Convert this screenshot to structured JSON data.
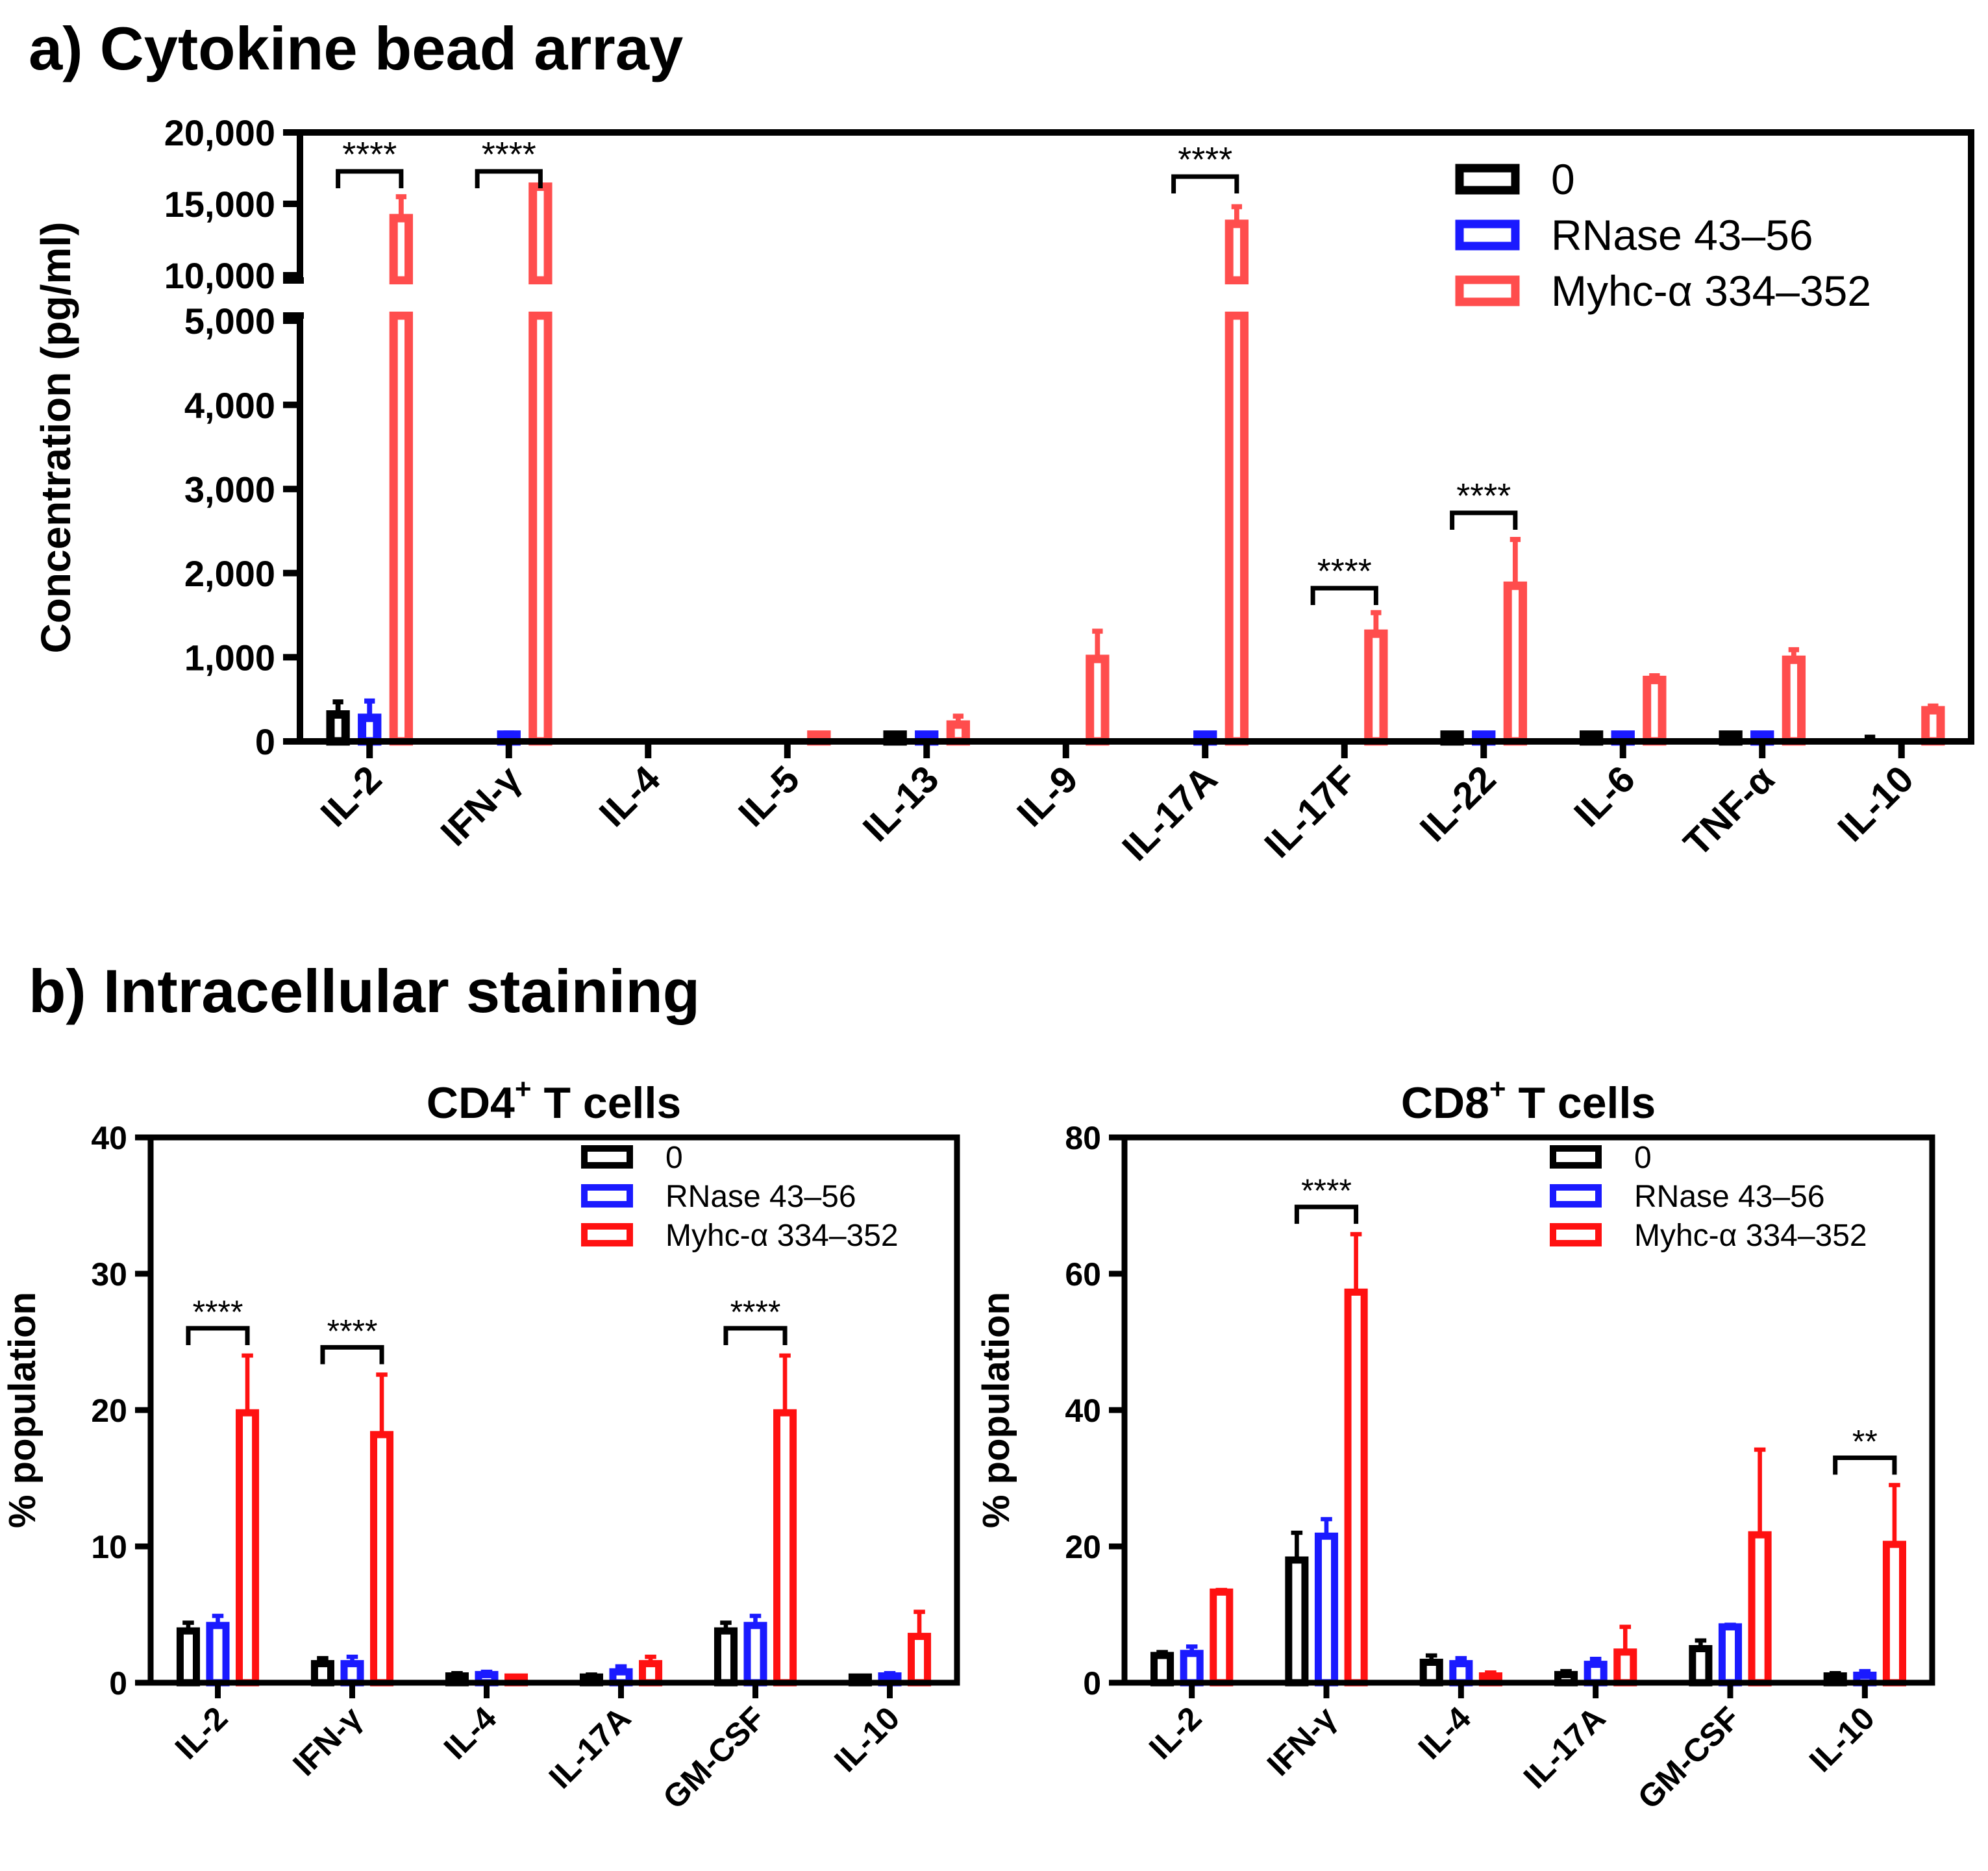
{
  "panel_a_heading": "a) Cytokine bead array",
  "panel_b_heading": "b) Intracellular staining",
  "colors": {
    "zero": "#000000",
    "rnase": "#1a1aff",
    "myhc_a": "#ff4d4d",
    "myhc_b": "#ff1111",
    "axis": "#000000"
  },
  "chart_data": [
    {
      "id": "a",
      "type": "bar",
      "title": "",
      "ylabel": "Concentration (pg/ml)",
      "xlabel": "",
      "y_axis_break": {
        "lower": [
          0,
          5000
        ],
        "upper": [
          10000,
          20000
        ]
      },
      "lower_ticks": [
        "0",
        "1,000",
        "2,000",
        "3,000",
        "4,000",
        "5,000"
      ],
      "upper_ticks": [
        "10,000",
        "15,000",
        "20,000"
      ],
      "lower_tick_values": [
        0,
        1000,
        2000,
        3000,
        4000,
        5000
      ],
      "upper_tick_values": [
        10000,
        15000,
        20000
      ],
      "categories": [
        "IL-2",
        "IFN-γ",
        "IL-4",
        "IL-5",
        "IL-13",
        "IL-9",
        "IL-17A",
        "IL-17F",
        "IL-22",
        "IL-6",
        "TNF-α",
        "IL-10"
      ],
      "series": [
        {
          "name": "0",
          "color_key": "zero",
          "values": [
            320,
            0,
            0,
            0,
            20,
            0,
            0,
            0,
            80,
            80,
            40,
            0
          ],
          "errors": [
            150,
            0,
            0,
            0,
            5,
            0,
            0,
            0,
            10,
            10,
            5,
            50
          ]
        },
        {
          "name": "RNase 43–56",
          "color_key": "rnase",
          "values": [
            280,
            20,
            0,
            0,
            20,
            0,
            10,
            0,
            80,
            80,
            40,
            0
          ],
          "errors": [
            200,
            80,
            0,
            0,
            5,
            0,
            5,
            0,
            10,
            10,
            5,
            0
          ]
        },
        {
          "name": "Myhc-α 334–352",
          "color_key": "myhc_a",
          "values": [
            14000,
            16200,
            0,
            60,
            200,
            980,
            13600,
            1280,
            1850,
            730,
            970,
            370
          ],
          "errors": [
            1500,
            0,
            0,
            30,
            100,
            330,
            1200,
            250,
            550,
            50,
            120,
            50
          ]
        }
      ],
      "significance": [
        {
          "category": "IL-2",
          "label": "****"
        },
        {
          "category": "IFN-γ",
          "label": "****"
        },
        {
          "category": "IL-17A",
          "label": "****"
        },
        {
          "category": "IL-17F",
          "label": "****"
        },
        {
          "category": "IL-22",
          "label": "****"
        }
      ],
      "legend": [
        "0",
        "RNase 43–56",
        "Myhc-α 334–352"
      ],
      "legend_position": "top-right"
    },
    {
      "id": "b1",
      "type": "bar",
      "title": "CD4",
      "title_sup": "+",
      "title_rest": " T cells",
      "ylabel": "% population",
      "xlabel": "",
      "ylim": [
        0,
        40
      ],
      "ticks": [
        "0",
        "10",
        "20",
        "30",
        "40"
      ],
      "tick_values": [
        0,
        10,
        20,
        30,
        40
      ],
      "categories": [
        "IL-2",
        "IFN-γ",
        "IL-4",
        "IL-17A",
        "GM-CSF",
        "IL-10"
      ],
      "series": [
        {
          "name": "0",
          "color_key": "zero",
          "values": [
            3.8,
            1.4,
            0.5,
            0.4,
            3.8,
            0.3
          ],
          "errors": [
            0.6,
            0.4,
            0.2,
            0.2,
            0.6,
            0.1
          ]
        },
        {
          "name": "RNase 43–56",
          "color_key": "rnase",
          "values": [
            4.2,
            1.4,
            0.6,
            0.8,
            4.2,
            0.5
          ],
          "errors": [
            0.7,
            0.5,
            0.2,
            0.4,
            0.7,
            0.2
          ]
        },
        {
          "name": "Myhc-α 334–352",
          "color_key": "myhc_b",
          "values": [
            19.8,
            18.2,
            0.3,
            1.4,
            19.8,
            3.4
          ],
          "errors": [
            4.2,
            4.4,
            0.1,
            0.5,
            4.2,
            1.8
          ]
        }
      ],
      "significance": [
        {
          "category": "IL-2",
          "label": "****"
        },
        {
          "category": "IFN-γ",
          "label": "****"
        },
        {
          "category": "GM-CSF",
          "label": "****"
        }
      ],
      "legend": [
        "0",
        "RNase 43–56",
        "Myhc-α 334–352"
      ],
      "legend_position": "top-right"
    },
    {
      "id": "b2",
      "type": "bar",
      "title": "CD8",
      "title_sup": "+",
      "title_rest": " T cells",
      "ylabel": "% population",
      "xlabel": "",
      "ylim": [
        0,
        80
      ],
      "ticks": [
        "0",
        "20",
        "40",
        "60",
        "80"
      ],
      "tick_values": [
        0,
        20,
        40,
        60,
        80
      ],
      "categories": [
        "IL-2",
        "IFN-γ",
        "IL-4",
        "IL-17A",
        "GM-CSF",
        "IL-10"
      ],
      "series": [
        {
          "name": "0",
          "color_key": "zero",
          "values": [
            4.0,
            18.0,
            3.0,
            1.2,
            5.0,
            1.0
          ],
          "errors": [
            0.5,
            4.0,
            1.0,
            0.5,
            1.2,
            0.4
          ]
        },
        {
          "name": "RNase 43–56",
          "color_key": "rnase",
          "values": [
            4.3,
            21.5,
            2.8,
            2.7,
            8.2,
            1.1
          ],
          "errors": [
            1.0,
            2.5,
            0.8,
            0.8,
            0.3,
            0.6
          ]
        },
        {
          "name": "Myhc-α 334–352",
          "color_key": "myhc_b",
          "values": [
            13.3,
            57.3,
            1.0,
            4.5,
            21.7,
            20.3
          ],
          "errors": [
            0.3,
            8.5,
            0.5,
            3.7,
            12.5,
            8.7
          ]
        }
      ],
      "significance": [
        {
          "category": "IFN-γ",
          "label": "****"
        },
        {
          "category": "IL-10",
          "label": "**"
        }
      ],
      "legend": [
        "0",
        "RNase 43–56",
        "Myhc-α 334–352"
      ],
      "legend_position": "top-right"
    }
  ]
}
